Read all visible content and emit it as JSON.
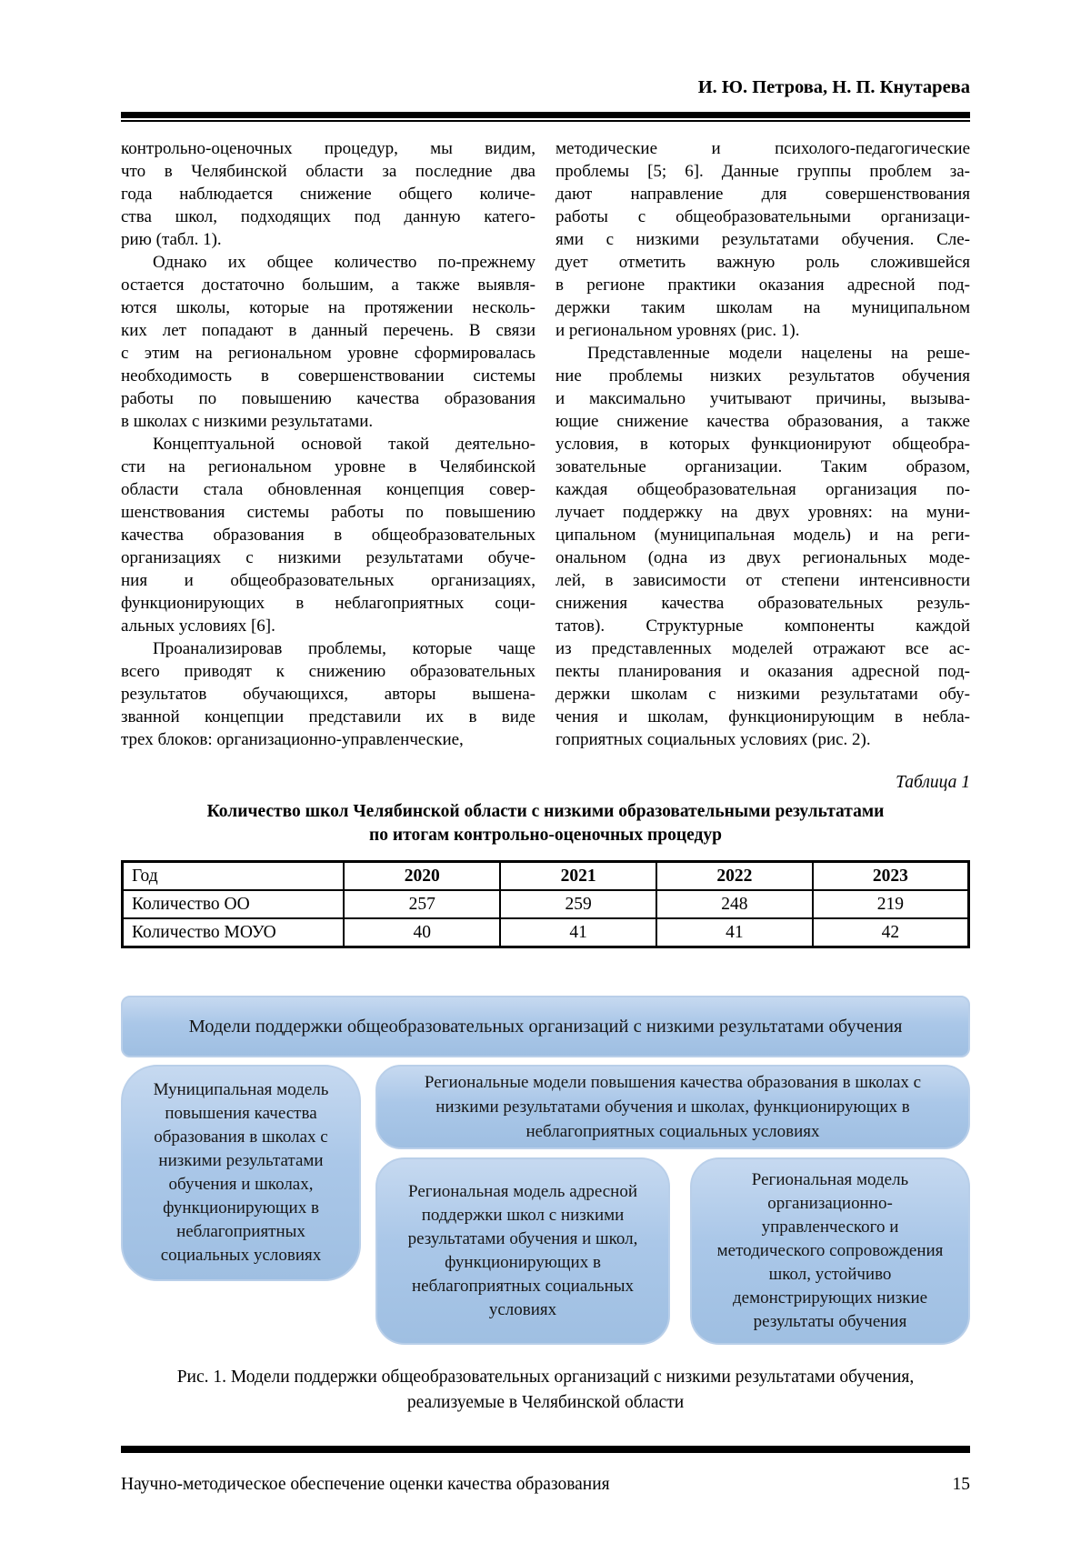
{
  "header": {
    "authors": "И. Ю. Петрова, Н. П. Кнутарева"
  },
  "body": {
    "left_column": [
      {
        "indent": false,
        "lines": [
          "контрольно-оценочных процедур, мы видим,",
          "что в Челябинской области за последние два",
          "года наблюдается снижение общего количе-",
          "ства школ, подходящих под данную катего-",
          "рию (табл. 1)."
        ]
      },
      {
        "indent": true,
        "lines": [
          "Однако их общее количество по-прежнему",
          "остается достаточно большим, а также выявля-",
          "ются школы, которые на протяжении несколь-",
          "ких лет попадают в данный перечень. В связи",
          "с этим на региональном уровне сформировалась",
          "необходимость в совершенствовании системы",
          "работы по повышению качества образования",
          "в школах с низкими результатами."
        ]
      },
      {
        "indent": true,
        "lines": [
          "Концептуальной основой такой деятельно-",
          "сти на региональном уровне в Челябинской",
          "области стала обновленная концепция совер-",
          "шенствования системы работы по повышению",
          "качества образования в общеобразовательных",
          "организациях с низкими результатами обуче-",
          "ния и общеобразовательных организациях,",
          "функционирующих в неблагоприятных соци-",
          "альных условиях [6]."
        ]
      },
      {
        "indent": true,
        "lines": [
          "Проанализировав проблемы, которые чаще",
          "всего приводят к снижению образовательных",
          "результатов обучающихся, авторы вышена-",
          "званной концепции представили их в виде",
          "трех блоков: организационно-управленческие,"
        ]
      }
    ],
    "right_column": [
      {
        "indent": false,
        "lines": [
          "методические и психолого-педагогические",
          "проблемы [5; 6]. Данные группы проблем за-",
          "дают направление для совершенствования",
          "работы с общеобразовательными организаци-",
          "ями с низкими результатами обучения. Сле-",
          "дует отметить важную роль сложившейся",
          "в регионе практики оказания адресной под-",
          "держки таким школам на муниципальном",
          "и региональном уровнях (рис. 1)."
        ]
      },
      {
        "indent": true,
        "lines": [
          "Представленные модели нацелены на реше-",
          "ние проблемы низких результатов обучения",
          "и максимально учитывают причины, вызыва-",
          "ющие снижение качества образования, а также",
          "условия, в которых функционируют общеобра-",
          "зовательные организации. Таким образом,",
          "каждая общеобразовательная организация по-",
          "лучает поддержку на двух уровнях: на муни-",
          "ципальном (муниципальная модель) и на реги-",
          "ональном (одна из двух региональных моде-",
          "лей, в зависимости от степени интенсивности",
          "снижения качества образовательных резуль-",
          "татов). Структурные компоненты каждой",
          "из представленных моделей отражают все ас-",
          "пекты планирования и оказания адресной под-",
          "держки школам с низкими результатами обу-",
          "чения и школам, функционирующим в небла-",
          "гоприятных социальных условиях (рис. 2)."
        ]
      }
    ]
  },
  "table_block": {
    "label": "Таблица 1",
    "title_line1": "Количество школ Челябинской области с низкими образовательными результатами",
    "title_line2": "по итогам контрольно-оценочных процедур",
    "header_row": [
      "Год",
      "2020",
      "2021",
      "2022",
      "2023"
    ],
    "rows": [
      [
        "Количество ОО",
        "257",
        "259",
        "248",
        "219"
      ],
      [
        "Количество МОУО",
        "40",
        "41",
        "41",
        "42"
      ]
    ]
  },
  "figure": {
    "banner": "Модели поддержки общеобразовательных организаций с низкими результатами обучения",
    "municipal_box": "Муниципальная модель повышения качества образования в школах с низкими результатами обучения и школах, функционирующих в неблагоприятных социальных условиях",
    "regional_wide_box": "Региональные модели повышения качества образования в школах с низкими результатами обучения и школах, функционирующих в неблагоприятных социальных условиях",
    "regional_targeted_box": "Региональная модель адресной поддержки школ с низкими результатами обучения и школ, функционирующих в неблагоприятных социальных условиях",
    "regional_org_box": "Региональная модель организационно-управленческого и методического сопровождения школ, устойчиво демонстрирующих низкие результаты обучения",
    "caption_line1": "Рис. 1. Модели поддержки общеобразовательных организаций с низкими результатами обучения,",
    "caption_line2": "реализуемые в Челябинской области",
    "box_fill_top": "#c6d9f0",
    "box_fill_bottom": "#9fbfe2"
  },
  "footer": {
    "running_title": "Научно-методическое обеспечение оценки качества образования",
    "page_number": "15"
  }
}
